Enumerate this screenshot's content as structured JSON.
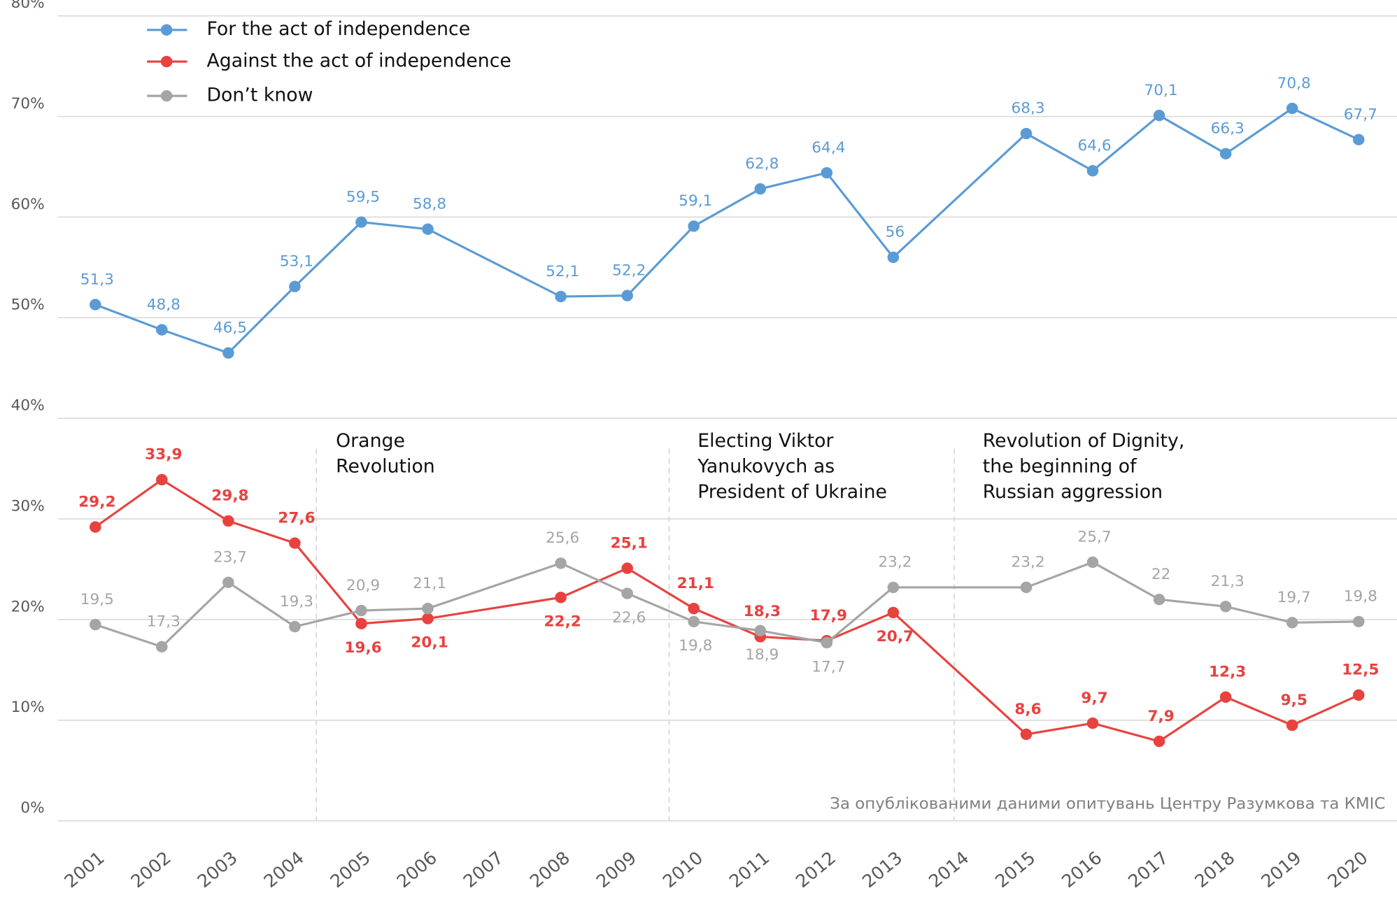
{
  "chart_data": {
    "type": "line",
    "x": [
      2001,
      2002,
      2003,
      2004,
      2005,
      2006,
      2008,
      2009,
      2010,
      2011,
      2012,
      2013,
      2015,
      2016,
      2017,
      2018,
      2019,
      2020
    ],
    "xticks": [
      2001,
      2002,
      2003,
      2004,
      2005,
      2006,
      2007,
      2008,
      2009,
      2010,
      2011,
      2012,
      2013,
      2014,
      2015,
      2016,
      2017,
      2018,
      2019,
      2020
    ],
    "xlim": [
      2001,
      2020
    ],
    "ylim": [
      0,
      80
    ],
    "yticks": [
      {
        "value": 0,
        "label": "0%"
      },
      {
        "value": 10,
        "label": "10%"
      },
      {
        "value": 20,
        "label": "20%"
      },
      {
        "value": 30,
        "label": "30%"
      },
      {
        "value": 40,
        "label": "40%"
      },
      {
        "value": 50,
        "label": "50%"
      },
      {
        "value": 60,
        "label": "60%"
      },
      {
        "value": 70,
        "label": "70%"
      },
      {
        "value": 80,
        "label": "80%"
      }
    ],
    "grid": true,
    "legend": "top-left",
    "series": [
      {
        "name": "For the act of independence",
        "color": "#5b9bd5",
        "values": [
          51.3,
          48.8,
          46.5,
          53.1,
          59.5,
          58.8,
          52.1,
          52.2,
          59.1,
          62.8,
          64.4,
          56,
          68.3,
          64.6,
          70.1,
          66.3,
          70.8,
          67.7
        ],
        "value_labels": [
          "51,3",
          "48,8",
          "46,5",
          "53,1",
          "59,5",
          "58,8",
          "52,1",
          "52,2",
          "59,1",
          "62,8",
          "64,4",
          "56",
          "68,3",
          "64,6",
          "70,1",
          "66,3",
          "70,8",
          "67,7"
        ]
      },
      {
        "name": "Against the act of independence",
        "color": "#e8423f",
        "values": [
          29.2,
          33.9,
          29.8,
          27.6,
          19.6,
          20.1,
          22.2,
          25.1,
          21.1,
          18.3,
          17.9,
          20.7,
          8.6,
          9.7,
          7.9,
          12.3,
          9.5,
          12.5
        ],
        "value_labels": [
          "29,2",
          "33,9",
          "29,8",
          "27,6",
          "19,6",
          "20,1",
          "22,2",
          "25,1",
          "21,1",
          "18,3",
          "17,9",
          "20,7",
          "8,6",
          "9,7",
          "7,9",
          "12,3",
          "9,5",
          "12,5"
        ]
      },
      {
        "name": "Don’t know",
        "color": "#a5a5a5",
        "values": [
          19.5,
          17.3,
          23.7,
          19.3,
          20.9,
          21.1,
          25.6,
          22.6,
          19.8,
          18.9,
          17.7,
          23.2,
          23.2,
          25.7,
          22,
          21.3,
          19.7,
          19.8
        ],
        "value_labels": [
          "19,5",
          "17,3",
          "23,7",
          "19,3",
          "20,9",
          "21,1",
          "25,6",
          "22,6",
          "19,8",
          "18,9",
          "17,7",
          "23,2",
          "23,2",
          "25,7",
          "22",
          "21,3",
          "19,7",
          "19,8"
        ]
      }
    ],
    "annotations": [
      {
        "lines": [
          "Orange",
          "Revolution"
        ]
      },
      {
        "lines": [
          "Electing Viktor",
          "Yanukovych as",
          "President of Ukraine"
        ]
      },
      {
        "lines": [
          "Revolution of Dignity,",
          "the beginning of",
          "Russian aggression"
        ]
      }
    ],
    "source": "За опублікованими  даними опитувань Центру  Разумкова та КМІС"
  }
}
